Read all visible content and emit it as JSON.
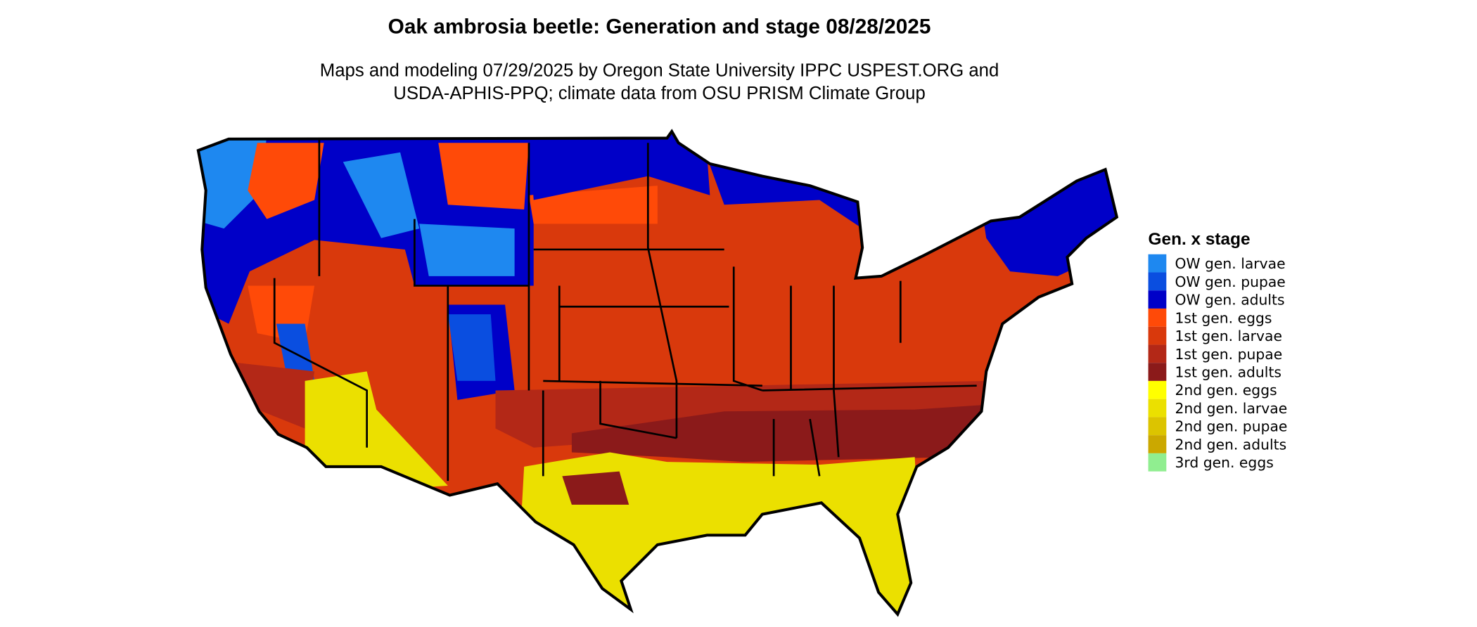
{
  "title": "Oak ambrosia beetle: Generation and stage 08/28/2025",
  "subtitle": [
    "Maps and modeling 07/29/2025 by Oregon State University IPPC USPEST.ORG and",
    "USDA-APHIS-PPQ; climate data from OSU PRISM Climate Group"
  ],
  "legend": {
    "title": "Gen. x stage",
    "items": [
      {
        "label": "OW gen. larvae",
        "color": "#1e88f0"
      },
      {
        "label": "OW gen. pupae",
        "color": "#0a4ee0"
      },
      {
        "label": "OW gen. adults",
        "color": "#0000c8"
      },
      {
        "label": "1st gen. eggs",
        "color": "#ff4a08"
      },
      {
        "label": "1st gen. larvae",
        "color": "#d9390c"
      },
      {
        "label": "1st gen. pupae",
        "color": "#b32817"
      },
      {
        "label": "1st gen. adults",
        "color": "#8b1a1a"
      },
      {
        "label": "2nd gen. eggs",
        "color": "#ffff00"
      },
      {
        "label": "2nd gen. larvae",
        "color": "#ebe000"
      },
      {
        "label": "2nd gen. pupae",
        "color": "#dcc400"
      },
      {
        "label": "2nd gen. adults",
        "color": "#cba800"
      },
      {
        "label": "3rd gen. eggs",
        "color": "#90ee90"
      }
    ]
  }
}
